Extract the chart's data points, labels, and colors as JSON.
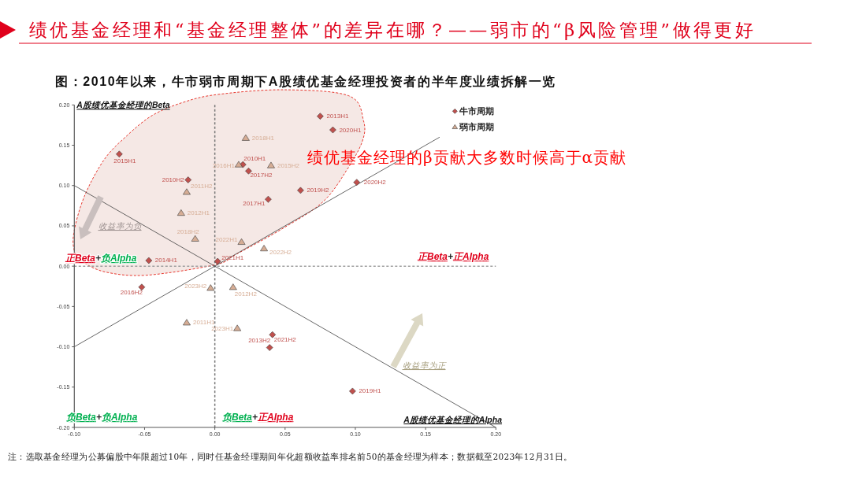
{
  "chart_data": {
    "type": "scatter",
    "title": "绩优基金经理和“基金经理整体”的差异在哪？——弱市的“β风险管理”做得更好",
    "subtitle": "图：2010年以来，牛市弱市周期下A股绩优基金经理投资者的半年度业绩拆解一览",
    "xlabel": "A股绩优基金经理的Alpha",
    "ylabel": "A股绩优基金经理的Beta",
    "xlim": [
      -0.1,
      0.2
    ],
    "xticks": [
      {
        "value": -0.1,
        "label": "-0.10"
      },
      -0.05,
      {
        "value": 0,
        "label": "0.00"
      },
      0.05,
      {
        "value": 0.1,
        "label": "0.10"
      },
      0.15,
      {
        "value": 0.2,
        "label": "0.20"
      }
    ],
    "ylim": [
      -0.2,
      0.2
    ],
    "yticks": [
      {
        "value": -0.2,
        "label": "-0.20"
      },
      -0.15,
      {
        "value": -0.1,
        "label": "-0.10"
      },
      -0.05,
      {
        "value": 0,
        "label": "0.00"
      },
      0.05,
      {
        "value": 0.1,
        "label": "0.10"
      },
      0.15,
      {
        "value": 0.2,
        "label": "0.20"
      }
    ],
    "legend": "top right",
    "series": [
      {
        "name": "牛市周期",
        "marker": "diamond",
        "color": "#c0504d",
        "x": [
          0.02,
          -0.019,
          0.075,
          0.039,
          -0.047,
          -0.068,
          -0.052,
          0.038,
          0.024,
          0.098,
          0.061,
          0.084,
          0.101,
          0.002,
          0.041
        ],
        "values": [
          0.126,
          0.107,
          0.186,
          -0.101,
          0.007,
          0.139,
          -0.026,
          0.083,
          0.118,
          -0.155,
          0.094,
          0.169,
          0.104,
          0.006,
          -0.085
        ]
      },
      {
        "name": "弱市周期",
        "marker": "triangle",
        "color": "#d6ad95",
        "x": [
          -0.02,
          -0.02,
          -0.024,
          0.013,
          0.04,
          0.017,
          0.022,
          -0.014,
          0.019,
          0.035,
          0.016,
          -0.003
        ],
        "values": [
          -0.07,
          0.092,
          0.066,
          -0.026,
          0.125,
          0.126,
          0.159,
          0.034,
          0.03,
          0.022,
          -0.077,
          -0.027
        ]
      },
      {
        "type": "line",
        "color": "#404040",
        "x": [
          -0.1,
          0.16
        ],
        "values": [
          -0.1,
          0.16
        ]
      },
      {
        "type": "line",
        "color": "#404040",
        "x": [
          -0.1,
          0.2
        ],
        "values": [
          0.1,
          -0.2
        ]
      }
    ],
    "ref_lines": [
      {
        "axis": "x",
        "value": 0,
        "color": "#767676",
        "line_style": "dashed"
      },
      {
        "axis": "y",
        "value": 0,
        "color": "#a0a0a0",
        "line_style": "dashed"
      }
    ],
    "annotations": [
      {
        "text": "2010H1",
        "x": 0.02,
        "y": 0.126
      },
      {
        "text": "2010H2",
        "x": -0.019,
        "y": 0.107
      },
      {
        "text": "2013H1",
        "x": 0.075,
        "y": 0.186
      },
      {
        "text": "2013H2",
        "x": 0.039,
        "y": -0.101
      },
      {
        "text": "2014H1",
        "x": -0.047,
        "y": 0.007
      },
      {
        "text": "2015H1",
        "x": -0.068,
        "y": 0.139
      },
      {
        "text": "2016H2",
        "x": -0.052,
        "y": -0.026
      },
      {
        "text": "2017H1",
        "x": 0.038,
        "y": 0.083
      },
      {
        "text": "2017H2",
        "x": 0.024,
        "y": 0.118
      },
      {
        "text": "2019H1",
        "x": 0.098,
        "y": -0.155
      },
      {
        "text": "2019H2",
        "x": 0.061,
        "y": 0.094
      },
      {
        "text": "2020H1",
        "x": 0.084,
        "y": 0.169
      },
      {
        "text": "2020H2",
        "x": 0.101,
        "y": 0.104
      },
      {
        "text": "2021H1",
        "x": 0.002,
        "y": 0.006
      },
      {
        "text": "2021H2",
        "x": 0.041,
        "y": -0.085
      },
      {
        "text": "2011H1",
        "x": -0.02,
        "y": -0.07
      },
      {
        "text": "2011H2",
        "x": -0.02,
        "y": 0.092
      },
      {
        "text": "2012H1",
        "x": -0.024,
        "y": 0.066
      },
      {
        "text": "2012H2",
        "x": 0.013,
        "y": -0.026
      },
      {
        "text": "2015H2",
        "x": 0.04,
        "y": 0.125
      },
      {
        "text": "2016H1",
        "x": 0.017,
        "y": 0.126
      },
      {
        "text": "2018H1",
        "x": 0.022,
        "y": 0.159
      },
      {
        "text": "2018H2",
        "x": -0.014,
        "y": 0.034
      },
      {
        "text": "2022H1",
        "x": 0.019,
        "y": 0.03
      },
      {
        "text": "2022H2",
        "x": 0.035,
        "y": 0.022
      },
      {
        "text": "2023H1",
        "x": 0.016,
        "y": -0.077
      },
      {
        "text": "2023H2",
        "x": -0.003,
        "y": -0.027
      },
      "绩优基金经理的β贡献大多数时候高于α贡献",
      "收益率为负",
      "收益率为正",
      "正Beta+负Alpha",
      "正Beta+正Alpha",
      "负Beta+负Alpha",
      "负Beta+正Alpha",
      "注：选取基金经理为公募偏股中年限超过10年，同时任基金经理期间年化超额收益率排名前50的基金经理为样本；数据截至2023年12月31日。"
    ]
  }
}
